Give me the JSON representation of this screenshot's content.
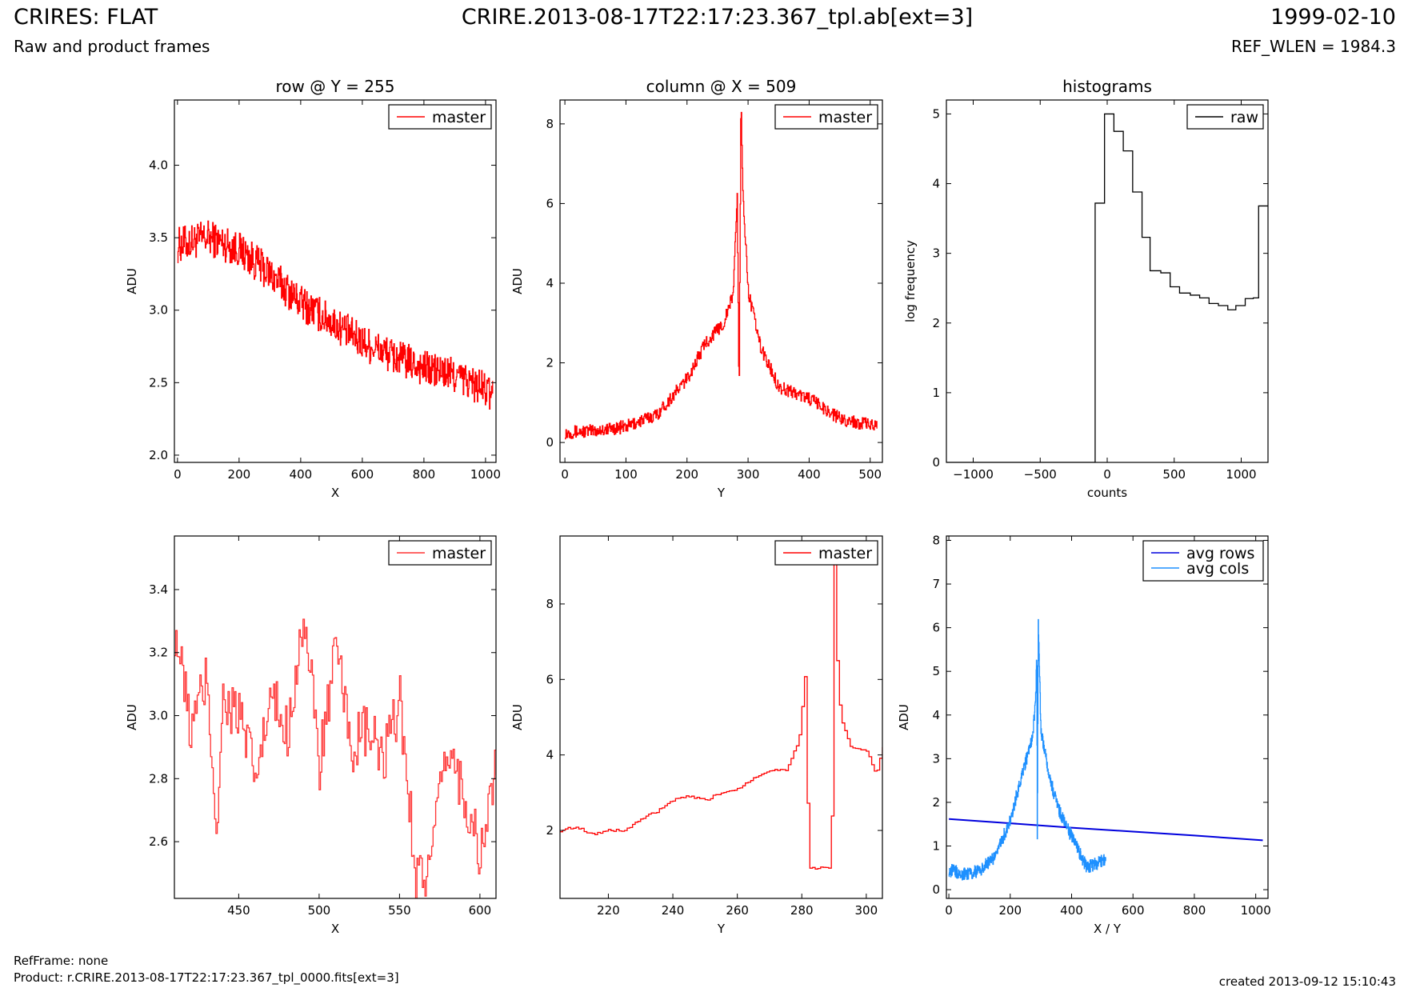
{
  "header": {
    "title": "CRIRES: FLAT",
    "subtitle": "Raw and product frames",
    "filename": "CRIRE.2013-08-17T22:17:23.367_tpl.ab[ext=3]",
    "date": "1999-02-10",
    "ref_wlen": "REF_WLEN = 1984.3"
  },
  "footer": {
    "ref_frame": "RefFrame: none",
    "product": "Product: r.CRIRE.2013-08-17T22:17:23.367_tpl_0000.fits[ext=3]",
    "created": "created 2013-09-12 15:10:43"
  },
  "colors": {
    "master": "#ff0000",
    "master_zoom": "#ff3333",
    "raw": "#000000",
    "avg_rows": "#0000dd",
    "avg_cols": "#1e90ff"
  },
  "chart_data": [
    {
      "id": "row",
      "type": "line",
      "title": "row @ Y = 255",
      "xlabel": "X",
      "ylabel": "ADU",
      "xlim": [
        -10,
        1034
      ],
      "ylim": [
        1.95,
        4.45
      ],
      "xticks": [
        0,
        200,
        400,
        600,
        800,
        1000
      ],
      "yticks": [
        2.0,
        2.5,
        3.0,
        3.5,
        4.0
      ],
      "ytick_labels": [
        "2.0",
        "2.5",
        "3.0",
        "3.5",
        "4.0"
      ],
      "legend_position": "top-right",
      "series": [
        {
          "name": "master",
          "color": "#ff0000",
          "x": [
            0,
            100,
            200,
            300,
            400,
            500,
            600,
            700,
            800,
            900,
            1000,
            1023
          ],
          "y": [
            3.45,
            3.5,
            3.42,
            3.25,
            3.05,
            2.92,
            2.78,
            2.68,
            2.6,
            2.55,
            2.45,
            2.4
          ]
        }
      ]
    },
    {
      "id": "column",
      "type": "line",
      "title": "column @ X = 509",
      "xlabel": "Y",
      "ylabel": "ADU",
      "xlim": [
        -8,
        520
      ],
      "ylim": [
        -0.5,
        8.6
      ],
      "xticks": [
        0,
        100,
        200,
        300,
        400,
        500
      ],
      "yticks": [
        0,
        2,
        4,
        6,
        8
      ],
      "ytick_labels": [
        "0",
        "2",
        "4",
        "6",
        "8"
      ],
      "legend_position": "top-right",
      "series": [
        {
          "name": "master",
          "color": "#ff0000",
          "x": [
            0,
            50,
            100,
            150,
            200,
            230,
            260,
            275,
            282,
            285,
            288,
            292,
            300,
            320,
            350,
            400,
            450,
            511
          ],
          "y": [
            0.25,
            0.3,
            0.4,
            0.7,
            1.6,
            2.5,
            3.0,
            3.7,
            6.2,
            1.0,
            8.6,
            6.0,
            3.8,
            2.4,
            1.4,
            1.1,
            0.6,
            0.4
          ]
        }
      ]
    },
    {
      "id": "histograms",
      "type": "line",
      "title": "histograms",
      "xlabel": "counts",
      "ylabel": "log frequency",
      "xlim": [
        -1200,
        1200
      ],
      "ylim": [
        0,
        5.2
      ],
      "xticks": [
        -1000,
        -500,
        0,
        500,
        1000
      ],
      "xtick_labels": [
        "−1000",
        "−500",
        "0",
        "500",
        "1000"
      ],
      "yticks": [
        0,
        1,
        2,
        3,
        4,
        5
      ],
      "ytick_labels": [
        "0",
        "1",
        "2",
        "3",
        "4",
        "5"
      ],
      "legend_position": "top-right",
      "series": [
        {
          "name": "raw",
          "color": "#000000",
          "bin_edges": [
            -1200,
            -90,
            -20,
            50,
            120,
            190,
            260,
            320,
            400,
            470,
            540,
            620,
            690,
            760,
            830,
            900,
            960,
            1030,
            1090,
            1130,
            1200
          ],
          "values": [
            0,
            3.72,
            5.0,
            4.75,
            4.47,
            3.88,
            3.23,
            2.75,
            2.72,
            2.52,
            2.43,
            2.4,
            2.36,
            2.28,
            2.25,
            2.19,
            2.25,
            2.35,
            2.36,
            3.68
          ]
        }
      ]
    },
    {
      "id": "row_zoom",
      "type": "line",
      "title": "",
      "xlabel": "X",
      "ylabel": "ADU",
      "xlim": [
        410,
        610
      ],
      "ylim": [
        2.42,
        3.57
      ],
      "xticks": [
        450,
        500,
        550,
        600
      ],
      "yticks": [
        2.6,
        2.8,
        3.0,
        3.2,
        3.4
      ],
      "ytick_labels": [
        "2.6",
        "2.8",
        "3.0",
        "3.2",
        "3.4"
      ],
      "legend_position": "top-right",
      "series": [
        {
          "name": "master",
          "color": "#ff3333",
          "x": [
            410,
            420,
            430,
            436,
            440,
            450,
            460,
            470,
            480,
            490,
            500,
            510,
            520,
            530,
            540,
            550,
            560,
            568,
            580,
            590,
            600,
            610
          ],
          "y": [
            3.28,
            2.95,
            3.12,
            2.64,
            3.05,
            3.0,
            2.8,
            3.05,
            2.95,
            3.32,
            2.85,
            3.2,
            2.9,
            2.95,
            2.85,
            3.05,
            2.5,
            2.5,
            2.9,
            2.75,
            2.55,
            2.85
          ]
        }
      ]
    },
    {
      "id": "column_zoom",
      "type": "line",
      "title": "",
      "xlabel": "Y",
      "ylabel": "ADU",
      "xlim": [
        205,
        305
      ],
      "ylim": [
        0.2,
        9.8
      ],
      "xticks": [
        220,
        240,
        260,
        280,
        300
      ],
      "yticks": [
        2,
        4,
        6,
        8
      ],
      "ytick_labels": [
        "2",
        "4",
        "6",
        "8"
      ],
      "legend_position": "top-right",
      "series": [
        {
          "name": "master",
          "color": "#ff0000",
          "x": [
            205,
            210,
            215,
            220,
            225,
            230,
            235,
            240,
            245,
            250,
            255,
            260,
            265,
            270,
            275,
            279,
            281,
            282,
            289,
            290,
            291,
            292,
            295,
            300,
            303,
            305
          ],
          "y": [
            2.0,
            2.1,
            1.9,
            2.0,
            2.0,
            2.3,
            2.5,
            2.8,
            2.9,
            2.8,
            3.0,
            3.1,
            3.4,
            3.6,
            3.6,
            4.4,
            6.2,
            1.0,
            1.0,
            9.1,
            6.0,
            5.0,
            4.2,
            4.1,
            3.5,
            4.2
          ]
        }
      ]
    },
    {
      "id": "averages",
      "type": "line",
      "title": "",
      "xlabel": "X / Y",
      "ylabel": "ADU",
      "xlim": [
        -8,
        1040
      ],
      "ylim": [
        -0.2,
        8.1
      ],
      "xticks": [
        0,
        200,
        400,
        600,
        800,
        1000
      ],
      "yticks": [
        0,
        1,
        2,
        3,
        4,
        5,
        6,
        7,
        8
      ],
      "ytick_labels": [
        "0",
        "1",
        "2",
        "3",
        "4",
        "5",
        "6",
        "7",
        "8"
      ],
      "legend_position": "top-right",
      "series": [
        {
          "name": "avg rows",
          "color": "#0000dd",
          "x": [
            0,
            200,
            400,
            600,
            800,
            1023
          ],
          "y": [
            1.62,
            1.52,
            1.42,
            1.33,
            1.24,
            1.13
          ]
        },
        {
          "name": "avg cols",
          "color": "#1e90ff",
          "x": [
            0,
            50,
            100,
            150,
            200,
            240,
            270,
            282,
            286,
            288,
            291,
            300,
            330,
            360,
            400,
            450,
            511
          ],
          "y": [
            0.45,
            0.35,
            0.45,
            0.75,
            1.6,
            2.7,
            3.4,
            4.2,
            5.4,
            1.0,
            6.3,
            3.6,
            2.5,
            1.8,
            1.2,
            0.5,
            0.7
          ]
        }
      ]
    }
  ]
}
